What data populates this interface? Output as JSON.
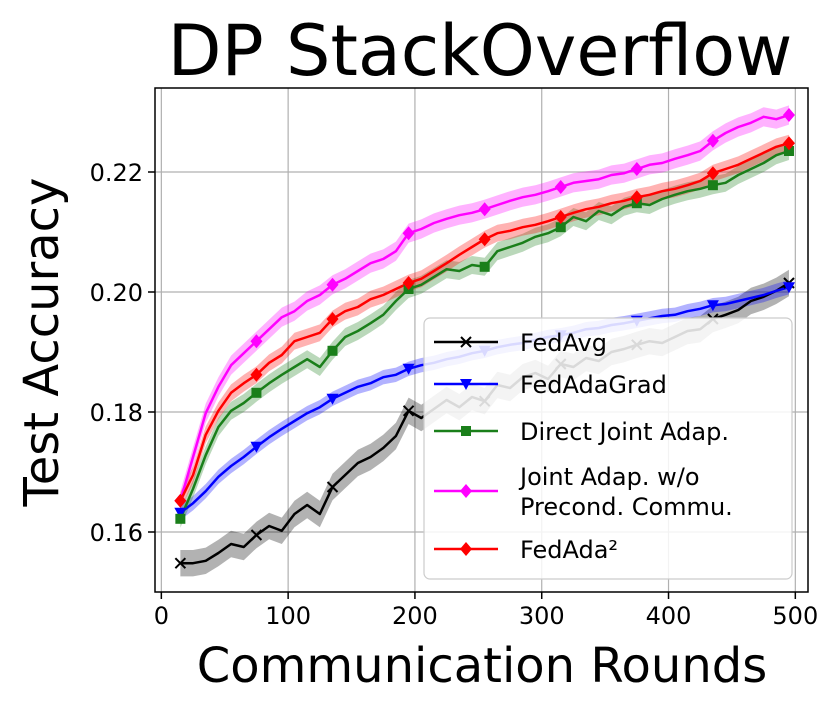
{
  "chart_data": {
    "type": "line",
    "title": "DP StackOverflow",
    "xlabel": "Communication Rounds",
    "ylabel": "Test Accuracy",
    "xlim": [
      -5,
      510
    ],
    "ylim": [
      0.15,
      0.234
    ],
    "xticks": [
      0,
      100,
      200,
      300,
      400,
      500
    ],
    "xtick_labels": [
      "0",
      "100",
      "200",
      "300",
      "400",
      "500"
    ],
    "yticks": [
      0.16,
      0.18,
      0.2,
      0.22
    ],
    "ytick_labels": [
      "0.16",
      "0.18",
      "0.20",
      "0.22"
    ],
    "grid": true,
    "legend_position": "lower-right",
    "series": [
      {
        "name": "FedAvg",
        "color": "#000000",
        "marker": "x",
        "x": [
          15,
          25,
          35,
          45,
          55,
          65,
          75,
          85,
          95,
          105,
          115,
          125,
          135,
          145,
          155,
          165,
          175,
          185,
          195,
          205,
          215,
          225,
          235,
          245,
          255,
          265,
          275,
          285,
          295,
          305,
          315,
          325,
          335,
          345,
          355,
          365,
          375,
          385,
          395,
          405,
          415,
          425,
          435,
          445,
          455,
          465,
          475,
          485,
          495
        ],
        "values": [
          0.1548,
          0.1548,
          0.1552,
          0.1565,
          0.158,
          0.1575,
          0.1595,
          0.161,
          0.1602,
          0.163,
          0.1645,
          0.163,
          0.1675,
          0.1695,
          0.1715,
          0.1725,
          0.174,
          0.176,
          0.1802,
          0.179,
          0.1805,
          0.182,
          0.1808,
          0.1825,
          0.1818,
          0.1845,
          0.184,
          0.1858,
          0.1865,
          0.1855,
          0.188,
          0.1875,
          0.189,
          0.1885,
          0.19,
          0.1905,
          0.1912,
          0.1918,
          0.1915,
          0.1925,
          0.1935,
          0.1938,
          0.1955,
          0.1962,
          0.197,
          0.1985,
          0.1992,
          0.2002,
          0.2015
        ],
        "band": 0.0022
      },
      {
        "name": "FedAdaGrad",
        "color": "#0000ff",
        "marker": "triangle-down",
        "x": [
          15,
          25,
          35,
          45,
          55,
          65,
          75,
          85,
          95,
          105,
          115,
          125,
          135,
          145,
          155,
          165,
          175,
          185,
          195,
          205,
          215,
          225,
          235,
          245,
          255,
          265,
          275,
          285,
          295,
          305,
          315,
          325,
          335,
          345,
          355,
          365,
          375,
          385,
          395,
          405,
          415,
          425,
          435,
          445,
          455,
          465,
          475,
          485,
          495
        ],
        "values": [
          0.1632,
          0.1648,
          0.1668,
          0.1692,
          0.171,
          0.1725,
          0.1742,
          0.1758,
          0.1772,
          0.1785,
          0.1798,
          0.1808,
          0.1822,
          0.1832,
          0.1842,
          0.1848,
          0.1858,
          0.1862,
          0.1872,
          0.1878,
          0.1882,
          0.1888,
          0.1892,
          0.1898,
          0.1902,
          0.1908,
          0.1912,
          0.1915,
          0.192,
          0.1925,
          0.1928,
          0.1932,
          0.1938,
          0.194,
          0.1945,
          0.1948,
          0.1952,
          0.1956,
          0.196,
          0.1962,
          0.1968,
          0.1972,
          0.1978,
          0.198,
          0.1985,
          0.199,
          0.1995,
          0.2002,
          0.2008
        ],
        "band": 0.0012
      },
      {
        "name": "Direct Joint Adap.",
        "color": "#1a7f1a",
        "marker": "square",
        "x": [
          15,
          25,
          35,
          45,
          55,
          65,
          75,
          85,
          95,
          105,
          115,
          125,
          135,
          145,
          155,
          165,
          175,
          185,
          195,
          205,
          215,
          225,
          235,
          245,
          255,
          265,
          275,
          285,
          295,
          305,
          315,
          325,
          335,
          345,
          355,
          365,
          375,
          385,
          395,
          405,
          415,
          425,
          435,
          445,
          455,
          465,
          475,
          485,
          495
        ],
        "values": [
          0.1622,
          0.1672,
          0.1728,
          0.1775,
          0.1802,
          0.1815,
          0.1832,
          0.1848,
          0.1862,
          0.1875,
          0.1888,
          0.1875,
          0.1902,
          0.1925,
          0.1935,
          0.1948,
          0.1962,
          0.1985,
          0.2005,
          0.2012,
          0.2025,
          0.2038,
          0.2035,
          0.2045,
          0.2042,
          0.2068,
          0.2075,
          0.2082,
          0.2092,
          0.2098,
          0.2108,
          0.2125,
          0.2118,
          0.2135,
          0.2128,
          0.2142,
          0.2148,
          0.2145,
          0.2155,
          0.2162,
          0.2168,
          0.2172,
          0.2178,
          0.2182,
          0.2195,
          0.2205,
          0.2215,
          0.2228,
          0.2235
        ],
        "band": 0.0015
      },
      {
        "name": "Joint Adap. w/o\nPrecond. Commu.",
        "color": "#ff00ff",
        "marker": "diamond",
        "x": [
          15,
          25,
          35,
          45,
          55,
          65,
          75,
          85,
          95,
          105,
          115,
          125,
          135,
          145,
          155,
          165,
          175,
          185,
          195,
          205,
          215,
          225,
          235,
          245,
          255,
          265,
          275,
          285,
          295,
          305,
          315,
          325,
          335,
          345,
          355,
          365,
          375,
          385,
          395,
          405,
          415,
          425,
          435,
          445,
          455,
          465,
          475,
          485,
          495
        ],
        "values": [
          0.1652,
          0.1725,
          0.1798,
          0.1842,
          0.1878,
          0.1898,
          0.1918,
          0.1938,
          0.1958,
          0.1968,
          0.1985,
          0.1995,
          0.2012,
          0.2022,
          0.2035,
          0.2048,
          0.2055,
          0.2068,
          0.2098,
          0.2105,
          0.2115,
          0.2122,
          0.2128,
          0.2132,
          0.2138,
          0.2145,
          0.2152,
          0.2158,
          0.2162,
          0.2168,
          0.2175,
          0.2182,
          0.2185,
          0.2188,
          0.2195,
          0.2198,
          0.2205,
          0.2212,
          0.2215,
          0.2222,
          0.2228,
          0.2235,
          0.2252,
          0.2265,
          0.2275,
          0.2282,
          0.2292,
          0.2288,
          0.2295
        ],
        "band": 0.0016
      },
      {
        "name": "FedAda²",
        "color": "#ff0000",
        "marker": "diamond",
        "x": [
          15,
          25,
          35,
          45,
          55,
          65,
          75,
          85,
          95,
          105,
          115,
          125,
          135,
          145,
          155,
          165,
          175,
          185,
          195,
          205,
          215,
          225,
          235,
          245,
          255,
          265,
          275,
          285,
          295,
          305,
          315,
          325,
          335,
          345,
          355,
          365,
          375,
          385,
          395,
          405,
          415,
          425,
          435,
          445,
          455,
          465,
          475,
          485,
          495
        ],
        "values": [
          0.1652,
          0.1695,
          0.1762,
          0.1802,
          0.1832,
          0.1848,
          0.1862,
          0.1882,
          0.1895,
          0.1918,
          0.1925,
          0.1932,
          0.1955,
          0.1968,
          0.1975,
          0.1988,
          0.1995,
          0.2005,
          0.2015,
          0.2022,
          0.2035,
          0.2048,
          0.2062,
          0.2075,
          0.2088,
          0.2098,
          0.2102,
          0.2108,
          0.2112,
          0.2118,
          0.2125,
          0.2132,
          0.2138,
          0.2142,
          0.2148,
          0.2152,
          0.2158,
          0.2162,
          0.2168,
          0.2172,
          0.2178,
          0.2185,
          0.2198,
          0.2205,
          0.2212,
          0.2222,
          0.2232,
          0.2242,
          0.2248
        ],
        "band": 0.0014
      }
    ],
    "marker_indices": [
      0,
      6,
      12,
      18,
      24,
      30,
      36,
      42,
      48
    ]
  }
}
